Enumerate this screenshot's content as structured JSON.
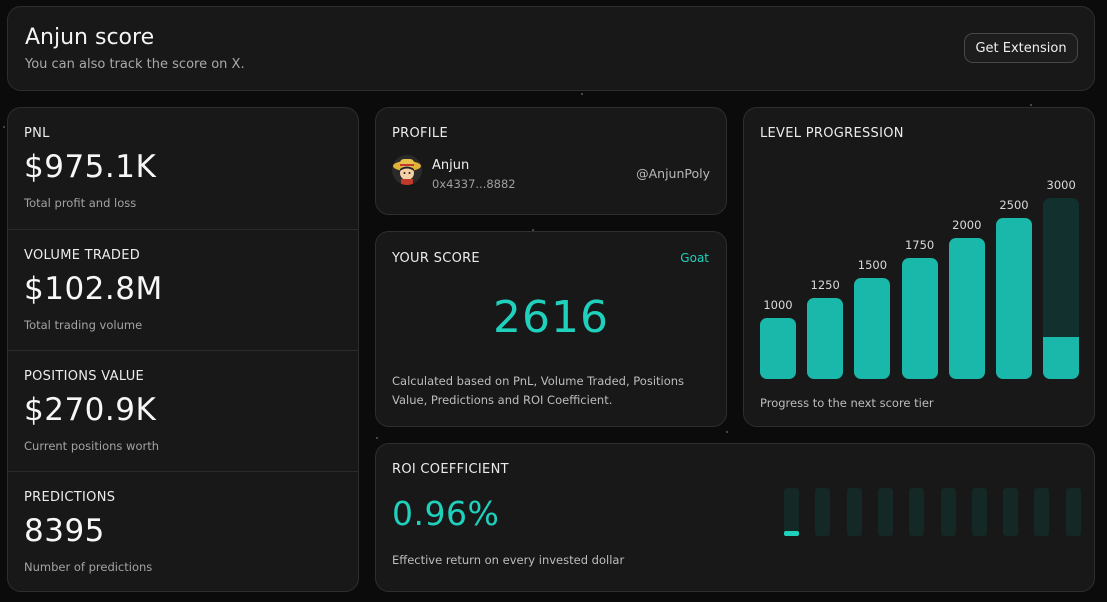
{
  "header": {
    "title": "Anjun score",
    "subtitle": "You can also track the score on X.",
    "button_label": "Get Extension"
  },
  "stats": [
    {
      "label": "PNL",
      "value": "$975.1K",
      "desc": "Total profit and loss"
    },
    {
      "label": "VOLUME TRADED",
      "value": "$102.8M",
      "desc": "Total trading volume"
    },
    {
      "label": "POSITIONS VALUE",
      "value": "$270.9K",
      "desc": "Current positions worth"
    },
    {
      "label": "PREDICTIONS",
      "value": "8395",
      "desc": "Number of predictions"
    }
  ],
  "profile": {
    "label": "PROFILE",
    "name": "Anjun",
    "address": "0x4337...8882",
    "handle": "@AnjunPoly"
  },
  "score": {
    "label": "YOUR SCORE",
    "tier": "Goat",
    "value": "2616",
    "desc": "Calculated based on PnL, Volume Traded, Positions Value, Predictions and ROI Coefficient."
  },
  "level": {
    "label": "LEVEL PROGRESSION",
    "caption": "Progress to the next score tier",
    "tiers": [
      "1000",
      "1250",
      "1500",
      "1750",
      "2000",
      "2500",
      "3000"
    ],
    "current_tier_progress": 0.23,
    "accent": "#1ab8aa"
  },
  "roi": {
    "label": "ROI COEFFICIENT",
    "value": "0.96%",
    "desc": "Effective return on every invested dollar",
    "segments": 10,
    "first_segment_fill": 0.1
  }
}
